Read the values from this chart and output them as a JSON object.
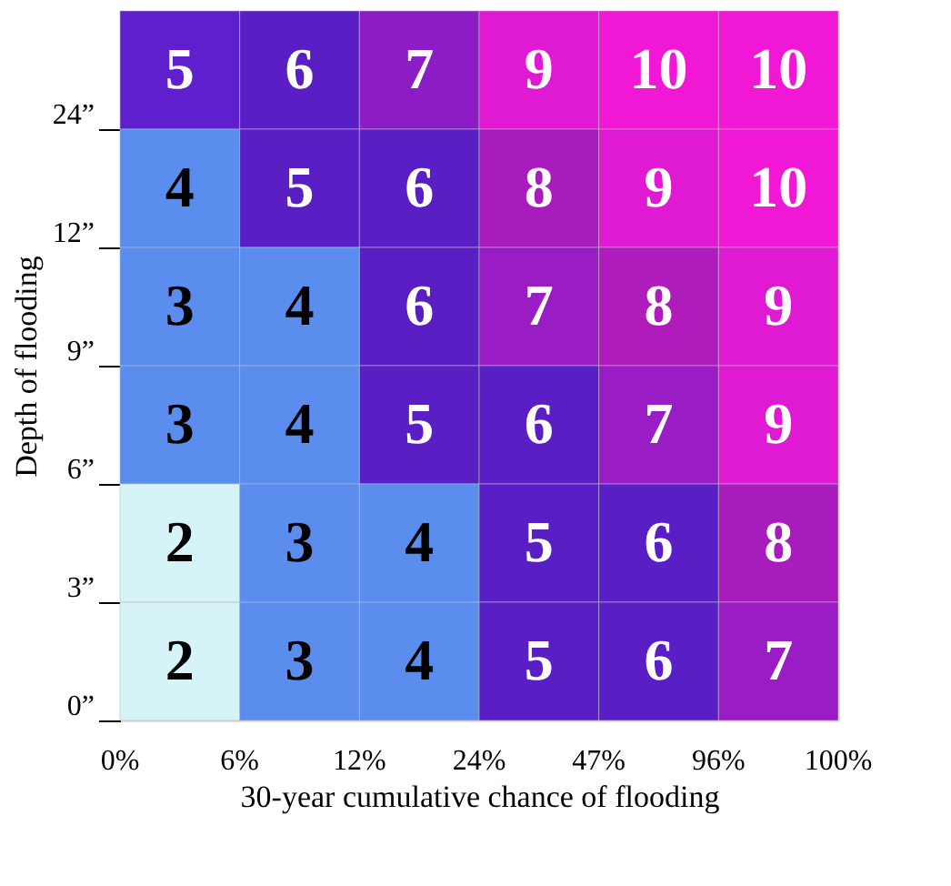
{
  "chart_data": {
    "type": "heatmap",
    "xlabel": "30-year cumulative chance of flooding",
    "ylabel": "Depth of flooding",
    "categories": [
      null,
      null,
      null,
      null,
      null,
      null
    ],
    "y_categories": [
      null,
      null,
      null,
      null,
      null,
      null
    ],
    "cells": [
      [
        5,
        6,
        7,
        9,
        10,
        10
      ],
      [
        4,
        5,
        6,
        8,
        9,
        10
      ],
      [
        3,
        4,
        6,
        7,
        8,
        9
      ],
      [
        3,
        4,
        5,
        6,
        7,
        9
      ],
      [
        2,
        3,
        4,
        5,
        6,
        8
      ],
      [
        2,
        3,
        4,
        5,
        6,
        7
      ]
    ],
    "colors": [
      [
        "#5f1fcc",
        "#5a1fc4",
        "#8c1cc4",
        "#e019d2",
        "#f018d4",
        "#f018d4"
      ],
      [
        "#5b8def",
        "#5a1fc4",
        "#5a1fc4",
        "#a81cbe",
        "#e019d2",
        "#f018d4"
      ],
      [
        "#5b8def",
        "#5b8def",
        "#5a1fc4",
        "#9a1cc4",
        "#b01bbc",
        "#e019d2"
      ],
      [
        "#5b8def",
        "#5b8def",
        "#5a1fc4",
        "#5a1fc4",
        "#9a1cc4",
        "#e019d2"
      ],
      [
        "#d6f3f8",
        "#5b8def",
        "#5b8def",
        "#5a1fc4",
        "#5a1fc4",
        "#a81cbe"
      ],
      [
        "#d6f3f8",
        "#5b8def",
        "#5b8def",
        "#5a1fc4",
        "#5a1fc4",
        "#9a1cc4"
      ]
    ],
    "annotations": [
      "0%",
      "6%",
      "12%",
      "24%",
      "47%",
      "96%",
      "100%",
      "0”",
      "3”",
      "6”",
      "9”",
      "12”",
      "24”"
    ],
    "data_labels": true
  }
}
